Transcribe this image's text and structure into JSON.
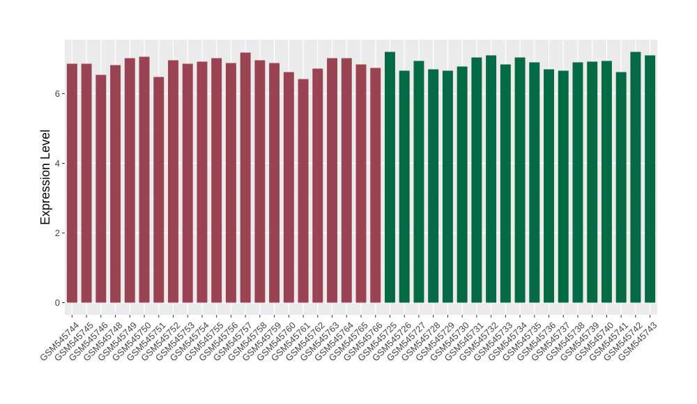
{
  "chart_data": {
    "type": "bar",
    "ylabel": "Expression Level",
    "xlabel": "",
    "ylim": [
      -0.35,
      7.55
    ],
    "yticks": [
      0,
      2,
      4,
      6
    ],
    "grid": true,
    "panel_background": "#EBEBEB",
    "categories": [
      "GSM545744",
      "GSM545745",
      "GSM545746",
      "GSM545748",
      "GSM545749",
      "GSM545750",
      "GSM545751",
      "GSM545752",
      "GSM545753",
      "GSM545754",
      "GSM545755",
      "GSM545756",
      "GSM545757",
      "GSM545758",
      "GSM545759",
      "GSM545760",
      "GSM545761",
      "GSM545762",
      "GSM545763",
      "GSM545764",
      "GSM545765",
      "GSM545766",
      "GSM545725",
      "GSM545726",
      "GSM545727",
      "GSM545728",
      "GSM545729",
      "GSM545730",
      "GSM545731",
      "GSM545732",
      "GSM545733",
      "GSM545734",
      "GSM545735",
      "GSM545736",
      "GSM545737",
      "GSM545738",
      "GSM545739",
      "GSM545740",
      "GSM545741",
      "GSM545742",
      "GSM545743"
    ],
    "values": [
      6.86,
      6.86,
      6.54,
      6.82,
      7.02,
      7.06,
      6.48,
      6.96,
      6.86,
      6.92,
      7.02,
      6.88,
      7.18,
      6.96,
      6.88,
      6.62,
      6.42,
      6.72,
      7.02,
      7.02,
      6.84,
      6.74,
      7.2,
      6.66,
      6.94,
      6.7,
      6.66,
      6.78,
      7.04,
      7.1,
      6.84,
      7.04,
      6.9,
      6.7,
      6.66,
      6.9,
      6.92,
      6.94,
      6.62,
      7.2,
      7.1
    ],
    "groups": [
      0,
      0,
      0,
      0,
      0,
      0,
      0,
      0,
      0,
      0,
      0,
      0,
      0,
      0,
      0,
      0,
      0,
      0,
      0,
      0,
      0,
      0,
      1,
      1,
      1,
      1,
      1,
      1,
      1,
      1,
      1,
      1,
      1,
      1,
      1,
      1,
      1,
      1,
      1,
      1,
      1
    ],
    "group_colors": [
      "#9A4352",
      "#046A45"
    ]
  }
}
